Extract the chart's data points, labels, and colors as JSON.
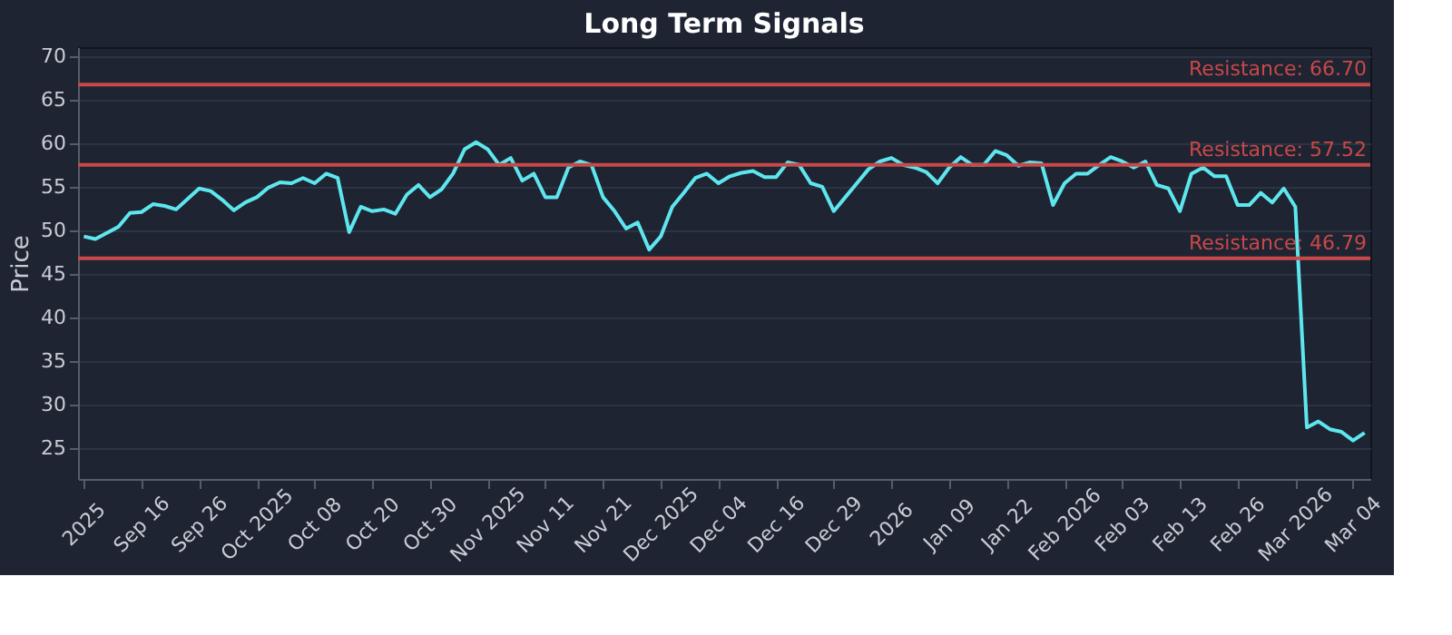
{
  "chart_data": {
    "type": "line",
    "title": "Long Term Signals",
    "ylabel": "Price",
    "categories": [
      "2025",
      null,
      null,
      null,
      null,
      "Sep 16",
      null,
      null,
      null,
      null,
      "Sep 26",
      null,
      null,
      null,
      null,
      "Oct 2025",
      null,
      null,
      null,
      null,
      "Oct 08",
      null,
      null,
      null,
      null,
      "Oct 20",
      null,
      null,
      null,
      null,
      "Oct 30",
      null,
      null,
      null,
      null,
      "Nov 2025",
      null,
      null,
      null,
      null,
      "Nov 11",
      null,
      null,
      null,
      null,
      "Nov 21",
      null,
      null,
      null,
      null,
      "Dec 2025",
      null,
      null,
      null,
      null,
      "Dec 04",
      null,
      null,
      null,
      null,
      "Dec 16",
      null,
      null,
      null,
      null,
      "Dec 29",
      null,
      null,
      null,
      null,
      "2026",
      null,
      null,
      null,
      null,
      "Jan 09",
      null,
      null,
      null,
      null,
      "Jan 22",
      null,
      null,
      null,
      null,
      "Feb 2026",
      null,
      null,
      null,
      null,
      "Feb 03",
      null,
      null,
      null,
      null,
      "Feb 13",
      null,
      null,
      null,
      null,
      "Feb 26",
      null,
      null,
      null,
      null,
      "Mar 2026",
      null,
      null,
      null,
      null,
      "Mar 04",
      null
    ],
    "series": [
      {
        "color": "#5ee6ee",
        "values": [
          49.3,
          49.0,
          49.7,
          50.4,
          52.0,
          52.1,
          53.0,
          52.8,
          52.4,
          53.6,
          54.8,
          54.5,
          53.5,
          52.3,
          53.2,
          53.8,
          54.9,
          55.5,
          55.4,
          56.0,
          55.4,
          56.5,
          56.0,
          49.8,
          52.7,
          52.2,
          52.4,
          51.9,
          54.1,
          55.2,
          53.8,
          54.7,
          56.5,
          59.3,
          60.1,
          59.3,
          57.5,
          58.3,
          55.7,
          56.5,
          53.8,
          53.8,
          57.2,
          57.9,
          57.5,
          53.8,
          52.2,
          50.2,
          50.9,
          47.8,
          49.3,
          52.7,
          54.3,
          56.0,
          56.5,
          55.4,
          56.2,
          56.6,
          56.8,
          56.1,
          56.1,
          57.8,
          57.5,
          55.4,
          55.0,
          52.2,
          53.8,
          55.4,
          57.0,
          57.9,
          58.3,
          57.5,
          57.2,
          56.7,
          55.4,
          57.2,
          58.4,
          57.5,
          57.5,
          59.1,
          58.6,
          57.4,
          57.8,
          57.7,
          52.9,
          55.4,
          56.5,
          56.5,
          57.5,
          58.4,
          57.9,
          57.2,
          57.9,
          55.2,
          54.8,
          52.2,
          56.5,
          57.2,
          56.2,
          56.2,
          52.9,
          52.9,
          54.3,
          53.2,
          54.8,
          52.7,
          27.4,
          28.1,
          27.2,
          26.9,
          25.9,
          26.8
        ]
      }
    ],
    "ylim": [
      21.5,
      71
    ],
    "yticks": [
      25,
      30,
      35,
      40,
      45,
      50,
      55,
      60,
      65,
      70
    ],
    "grid": "y",
    "legend": false,
    "marker": "none",
    "line_style": "solid",
    "ref_lines": [
      {
        "axis": "y",
        "value": 66.7,
        "label": "Resistance: 66.70",
        "color": "#c94848"
      },
      {
        "axis": "y",
        "value": 57.52,
        "label": "Resistance: 57.52",
        "color": "#c94848"
      },
      {
        "axis": "y",
        "value": 46.79,
        "label": "Resistance: 46.79",
        "color": "#c94848"
      }
    ]
  }
}
